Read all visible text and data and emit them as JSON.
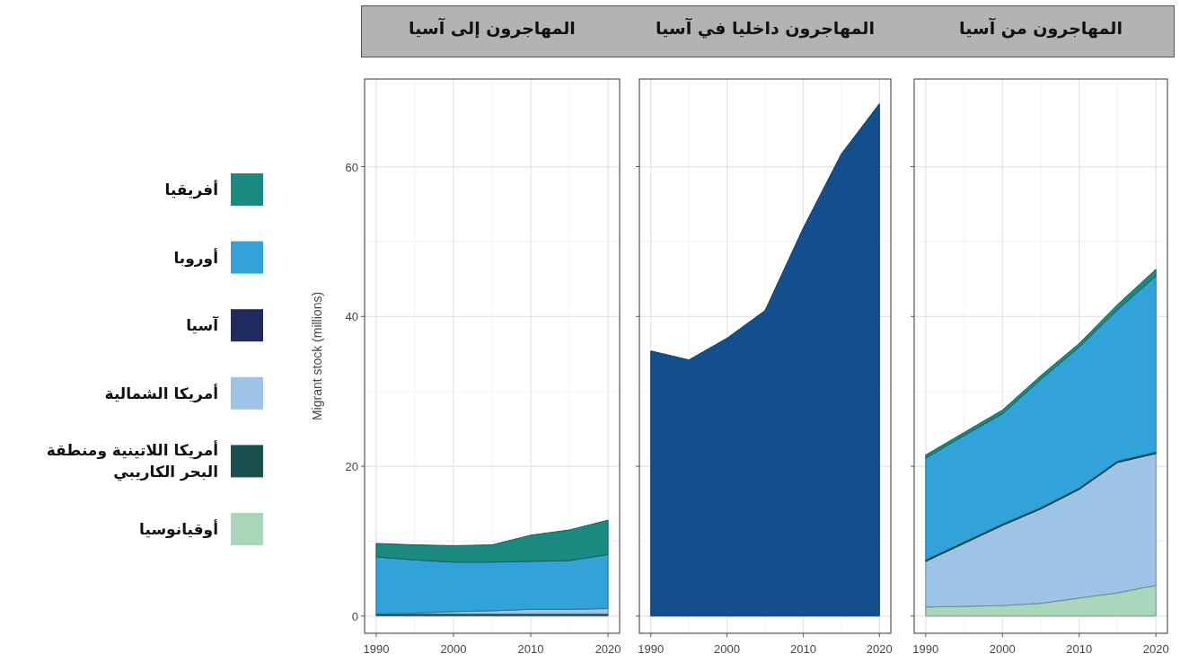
{
  "chart_data": [
    {
      "type": "area",
      "title": "المهاجرون إلى آسيا",
      "ylabel": "Migrant stock (millions)",
      "stacked": true,
      "legend": "left",
      "grid": true,
      "x": [
        1990,
        1995,
        2000,
        2005,
        2010,
        2015,
        2020
      ],
      "xlim": [
        1988.5,
        2021.5
      ],
      "xticks": [
        1990,
        2000,
        2010,
        2020
      ],
      "ylim": [
        -2.3,
        71.7
      ],
      "yticks": [
        0,
        20,
        40,
        60
      ],
      "series": [
        {
          "name": "أوقيانوسيا",
          "color": "#a8d8b9",
          "values": [
            0.1,
            0.1,
            0.1,
            0.1,
            0.1,
            0.1,
            0.1
          ]
        },
        {
          "name": "أمريكا اللاتينية ومنطقة البحر الكاريبي",
          "color": "#1a4f4f",
          "values": [
            0.2,
            0.2,
            0.2,
            0.2,
            0.2,
            0.2,
            0.2
          ]
        },
        {
          "name": "أمريكا الشمالية",
          "color": "#9dc3e6",
          "values": [
            0,
            0.1,
            0.3,
            0.4,
            0.6,
            0.6,
            0.7
          ]
        },
        {
          "name": "آسيا",
          "color": "#1f2a5e",
          "values": [
            null,
            null,
            null,
            null,
            null,
            null,
            null
          ]
        },
        {
          "name": "أوروبا",
          "color": "#31a3d9",
          "values": [
            7.6,
            7.1,
            6.6,
            6.5,
            6.4,
            6.5,
            7.2
          ]
        },
        {
          "name": "أفريقيا",
          "color": "#1a8a80",
          "values": [
            1.8,
            2.0,
            2.2,
            2.3,
            3.5,
            4.1,
            4.6
          ]
        }
      ]
    },
    {
      "type": "area",
      "title": "المهاجرون داخليا في آسيا",
      "stacked": true,
      "grid": true,
      "tick_labels": "x",
      "x": [
        1990,
        1995,
        2000,
        2005,
        2010,
        2015,
        2020
      ],
      "xlim": [
        1988.5,
        2021.5
      ],
      "xticks": [
        1990,
        2000,
        2010,
        2020
      ],
      "ylim": [
        -2.3,
        71.7
      ],
      "yticks": [
        0,
        20,
        40,
        60
      ],
      "series": [
        {
          "color": "#134f8c",
          "values": [
            35.4,
            34.2,
            37.1,
            40.8,
            51.8,
            61.7,
            68.4
          ]
        }
      ]
    },
    {
      "type": "area",
      "title": "المهاجرون من آسيا",
      "stacked": true,
      "grid": true,
      "tick_labels": "x",
      "x": [
        1990,
        1995,
        2000,
        2005,
        2010,
        2015,
        2020
      ],
      "xlim": [
        1988.5,
        2021.5
      ],
      "xticks": [
        1990,
        2000,
        2010,
        2020
      ],
      "ylim": [
        -2.3,
        71.7
      ],
      "yticks": [
        0,
        20,
        40,
        60
      ],
      "series": [
        {
          "color": "#a8d8b9",
          "values": [
            1.2,
            1.3,
            1.4,
            1.7,
            2.4,
            3.1,
            4.1
          ]
        },
        {
          "color": "#9dc3e6",
          "values": [
            6.1,
            8.4,
            10.7,
            12.6,
            14.5,
            17.4,
            17.6
          ]
        },
        {
          "color": "#1a4f4f",
          "values": [
            0.2,
            0.2,
            0.2,
            0.2,
            0.2,
            0.2,
            0.2
          ]
        },
        {
          "color": "#31a3d9",
          "values": [
            13.6,
            14.2,
            14.7,
            17.1,
            18.8,
            20.2,
            23.5
          ]
        },
        {
          "color": "#1a8a80",
          "values": [
            0.4,
            0.4,
            0.5,
            0.5,
            0.5,
            0.7,
            0.9
          ]
        }
      ]
    }
  ]
}
